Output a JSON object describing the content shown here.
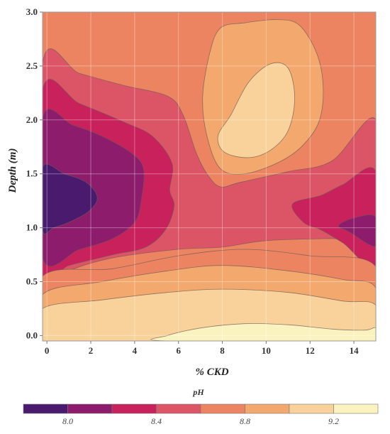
{
  "chart_data": {
    "type": "contour",
    "xlabel": "% CKD",
    "ylabel": "Depth (m)",
    "xlim": [
      -0.2,
      15
    ],
    "ylim": [
      -0.05,
      3.0
    ],
    "xticks": [
      0,
      2,
      4,
      6,
      8,
      10,
      12,
      14
    ],
    "yticks": [
      0.0,
      0.5,
      1.0,
      1.5,
      2.0,
      2.5,
      3.0
    ],
    "grid": true,
    "colorbar": {
      "title": "pH",
      "tick_values": [
        8.0,
        8.4,
        8.8,
        9.2
      ],
      "tick_labels": [
        "8.0",
        "8.4",
        "8.8",
        "9.2"
      ],
      "range": [
        7.8,
        9.4
      ],
      "levels": [
        {
          "range": [
            7.8,
            8.0
          ],
          "color": "#4a1a6e"
        },
        {
          "range": [
            8.0,
            8.2
          ],
          "color": "#8e1c6c"
        },
        {
          "range": [
            8.2,
            8.4
          ],
          "color": "#c8215c"
        },
        {
          "range": [
            8.4,
            8.6
          ],
          "color": "#db5566"
        },
        {
          "range": [
            8.6,
            8.8
          ],
          "color": "#ec8462"
        },
        {
          "range": [
            8.8,
            9.0
          ],
          "color": "#f3a86d"
        },
        {
          "range": [
            9.0,
            9.2
          ],
          "color": "#f8d29a"
        },
        {
          "range": [
            9.2,
            9.4
          ],
          "color": "#fbf3bf"
        }
      ]
    },
    "regions": [
      {
        "level": 8.7,
        "color": "#ec8462",
        "points": [
          [
            -0.2,
            -0.05
          ],
          [
            15,
            -0.05
          ],
          [
            15,
            3
          ],
          [
            -0.2,
            3
          ]
        ]
      },
      {
        "level": 8.5,
        "color": "#db5566",
        "points": [
          [
            -0.2,
            2.53
          ],
          [
            1.5,
            2.43
          ],
          [
            3.5,
            2.32
          ],
          [
            5.5,
            2.22
          ],
          [
            6.2,
            2.05
          ],
          [
            6.8,
            1.7
          ],
          [
            7.3,
            1.5
          ],
          [
            7.9,
            1.38
          ],
          [
            8.8,
            1.42
          ],
          [
            11,
            1.52
          ],
          [
            13,
            1.62
          ],
          [
            15,
            2.0
          ],
          [
            15,
            0.9
          ],
          [
            13,
            0.9
          ],
          [
            10,
            0.88
          ],
          [
            8,
            0.82
          ],
          [
            6,
            0.8
          ],
          [
            3,
            0.72
          ],
          [
            1,
            0.6
          ],
          [
            -0.2,
            0.45
          ]
        ]
      },
      {
        "level": 8.3,
        "color": "#c8215c",
        "points": [
          [
            -0.2,
            2.28
          ],
          [
            1.5,
            2.15
          ],
          [
            3.5,
            1.98
          ],
          [
            4.8,
            1.85
          ],
          [
            5.7,
            1.6
          ],
          [
            5.6,
            1.35
          ],
          [
            5.8,
            1.2
          ],
          [
            5.4,
            0.98
          ],
          [
            4.5,
            0.82
          ],
          [
            3,
            0.75
          ],
          [
            1,
            0.65
          ],
          [
            -0.2,
            0.58
          ]
        ]
      },
      {
        "level": 8.3,
        "color": "#c8215c",
        "points": [
          [
            15,
            1.52
          ],
          [
            13.5,
            1.4
          ],
          [
            12.5,
            1.3
          ],
          [
            11.2,
            1.22
          ],
          [
            11.7,
            1.05
          ],
          [
            12.5,
            0.98
          ],
          [
            13.5,
            0.86
          ],
          [
            15,
            0.66
          ]
        ]
      },
      {
        "level": 8.1,
        "color": "#8e1c6c",
        "points": [
          [
            -0.2,
            2.02
          ],
          [
            1.2,
            1.95
          ],
          [
            2.5,
            1.85
          ],
          [
            3.8,
            1.7
          ],
          [
            4.4,
            1.55
          ],
          [
            4.3,
            1.25
          ],
          [
            4.0,
            1.05
          ],
          [
            3.0,
            0.9
          ],
          [
            1.5,
            0.8
          ],
          [
            -0.2,
            0.72
          ]
        ]
      },
      {
        "level": 8.1,
        "color": "#8e1c6c",
        "points": [
          [
            15,
            1.1
          ],
          [
            14,
            1.09
          ],
          [
            13.3,
            1.02
          ],
          [
            13.8,
            0.96
          ],
          [
            15,
            0.83
          ]
        ]
      },
      {
        "level": 7.9,
        "color": "#4a1a6e",
        "points": [
          [
            -0.2,
            1.56
          ],
          [
            0.8,
            1.5
          ],
          [
            1.8,
            1.42
          ],
          [
            2.3,
            1.28
          ],
          [
            1.9,
            1.15
          ],
          [
            1.0,
            1.05
          ],
          [
            0.3,
            1.0
          ],
          [
            -0.2,
            0.98
          ]
        ]
      },
      {
        "level": 8.7,
        "color": "#ec8462",
        "points": [
          [
            -0.2,
            0.55
          ],
          [
            3,
            0.62
          ],
          [
            6,
            0.74
          ],
          [
            9,
            0.8
          ],
          [
            12,
            0.74
          ],
          [
            15,
            0.64
          ],
          [
            15,
            -0.05
          ],
          [
            -0.2,
            -0.05
          ]
        ]
      },
      {
        "level": 8.9,
        "color": "#f3a86d",
        "points": [
          [
            -0.2,
            0.38
          ],
          [
            2.5,
            0.5
          ],
          [
            5.5,
            0.6
          ],
          [
            8,
            0.65
          ],
          [
            11,
            0.6
          ],
          [
            13.5,
            0.52
          ],
          [
            15,
            0.44
          ],
          [
            15,
            -0.05
          ],
          [
            -0.2,
            -0.05
          ]
        ]
      },
      {
        "level": 9.1,
        "color": "#f8d29a",
        "points": [
          [
            -0.2,
            0.25
          ],
          [
            2.5,
            0.33
          ],
          [
            5.5,
            0.4
          ],
          [
            8,
            0.43
          ],
          [
            11,
            0.4
          ],
          [
            13.5,
            0.32
          ],
          [
            15,
            0.28
          ],
          [
            15,
            -0.05
          ],
          [
            -0.2,
            -0.05
          ]
        ]
      },
      {
        "level": 9.3,
        "color": "#fbf3bf",
        "points": [
          [
            5.5,
            0.0
          ],
          [
            7,
            0.07
          ],
          [
            9,
            0.11
          ],
          [
            11,
            0.1
          ],
          [
            13,
            0.06
          ],
          [
            14.5,
            0.05
          ],
          [
            15,
            0.07
          ],
          [
            15,
            -0.05
          ],
          [
            5.5,
            -0.05
          ]
        ]
      },
      {
        "level": 8.9,
        "color": "#f3a86d",
        "points": [
          [
            7.4,
            2.6
          ],
          [
            7.9,
            2.85
          ],
          [
            9,
            2.9
          ],
          [
            10.5,
            2.93
          ],
          [
            11.5,
            2.88
          ],
          [
            12.3,
            2.62
          ],
          [
            12.6,
            2.3
          ],
          [
            12.4,
            1.98
          ],
          [
            11.6,
            1.75
          ],
          [
            10.5,
            1.6
          ],
          [
            9,
            1.5
          ],
          [
            7.9,
            1.55
          ],
          [
            7.3,
            1.85
          ],
          [
            7.1,
            2.2
          ]
        ]
      },
      {
        "level": 9.1,
        "color": "#f8d29a",
        "points": [
          [
            8.4,
            2.05
          ],
          [
            9.2,
            2.35
          ],
          [
            10.2,
            2.52
          ],
          [
            11.0,
            2.48
          ],
          [
            11.3,
            2.2
          ],
          [
            11.0,
            1.9
          ],
          [
            10.2,
            1.72
          ],
          [
            9.2,
            1.65
          ],
          [
            8.1,
            1.7
          ],
          [
            7.8,
            1.85
          ]
        ]
      }
    ]
  }
}
